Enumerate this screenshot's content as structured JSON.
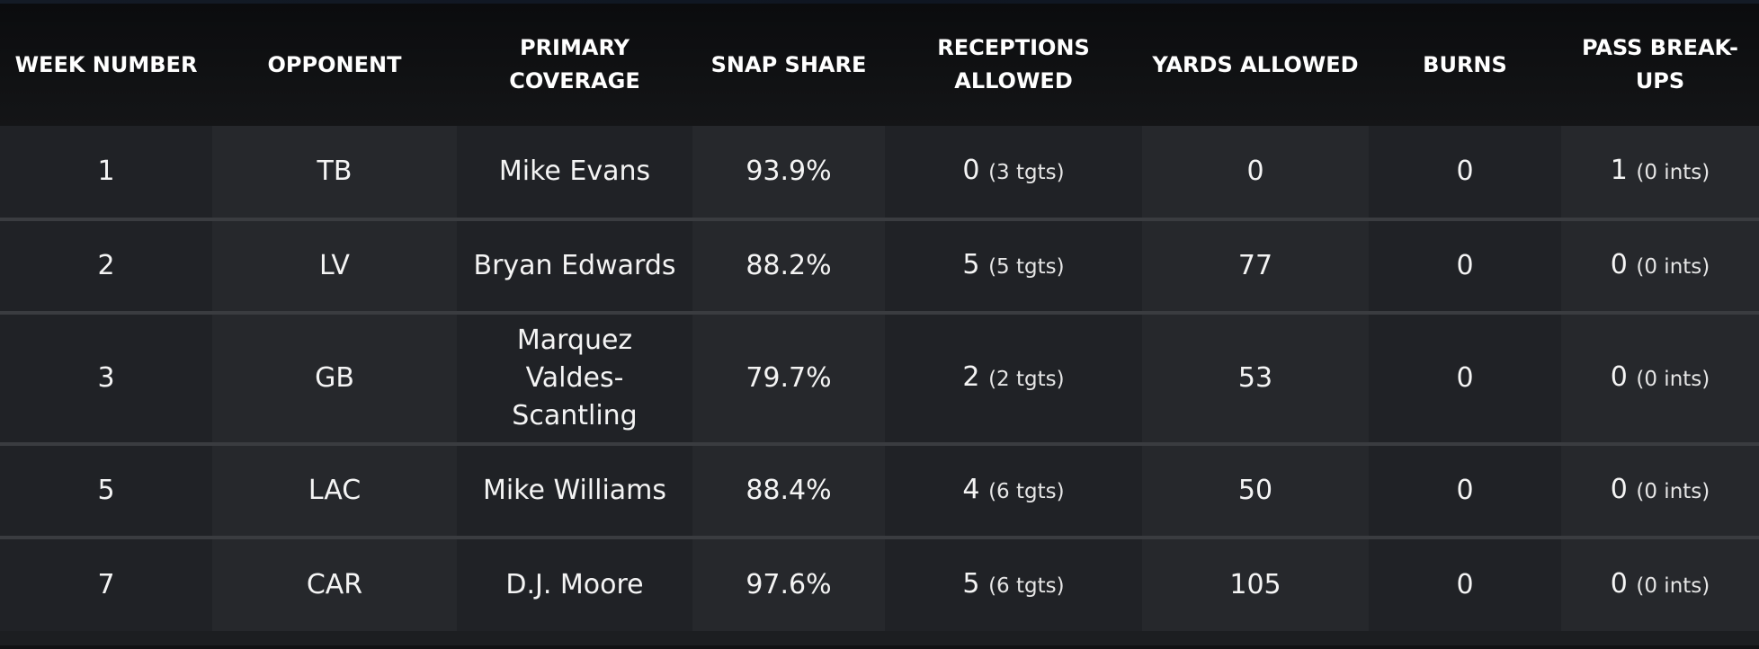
{
  "table": {
    "headers": [
      [
        "WEEK NUMBER"
      ],
      [
        "OPPONENT"
      ],
      [
        "PRIMARY",
        "COVERAGE"
      ],
      [
        "SNAP SHARE"
      ],
      [
        "RECEPTIONS",
        "ALLOWED"
      ],
      [
        "YARDS ALLOWED"
      ],
      [
        "BURNS"
      ],
      [
        "PASS BREAK-",
        "UPS"
      ]
    ],
    "rows": [
      {
        "week": "1",
        "opponent": "TB",
        "coverage": [
          "Mike Evans"
        ],
        "snap_share": "93.9%",
        "receptions": "0",
        "receptions_sub": "(3 tgts)",
        "yards": "0",
        "burns": "0",
        "pbu": "1",
        "pbu_sub": "(0 ints)"
      },
      {
        "week": "2",
        "opponent": "LV",
        "coverage": [
          "Bryan Edwards"
        ],
        "snap_share": "88.2%",
        "receptions": "5",
        "receptions_sub": "(5 tgts)",
        "yards": "77",
        "burns": "0",
        "pbu": "0",
        "pbu_sub": "(0 ints)"
      },
      {
        "week": "3",
        "opponent": "GB",
        "coverage": [
          "Marquez Valdes-",
          "Scantling"
        ],
        "snap_share": "79.7%",
        "receptions": "2",
        "receptions_sub": "(2 tgts)",
        "yards": "53",
        "burns": "0",
        "pbu": "0",
        "pbu_sub": "(0 ints)"
      },
      {
        "week": "5",
        "opponent": "LAC",
        "coverage": [
          "Mike Williams"
        ],
        "snap_share": "88.4%",
        "receptions": "4",
        "receptions_sub": "(6 tgts)",
        "yards": "50",
        "burns": "0",
        "pbu": "0",
        "pbu_sub": "(0 ints)"
      },
      {
        "week": "7",
        "opponent": "CAR",
        "coverage": [
          "D.J. Moore"
        ],
        "snap_share": "97.6%",
        "receptions": "5",
        "receptions_sub": "(6 tgts)",
        "yards": "105",
        "burns": "0",
        "pbu": "0",
        "pbu_sub": "(0 ints)"
      }
    ]
  },
  "colors": {
    "header_bg": "#0b0c0e",
    "row_base": "#202226",
    "row_alt": "#26282c",
    "divider": "#3a3c40",
    "text": "#f4f4f4"
  }
}
